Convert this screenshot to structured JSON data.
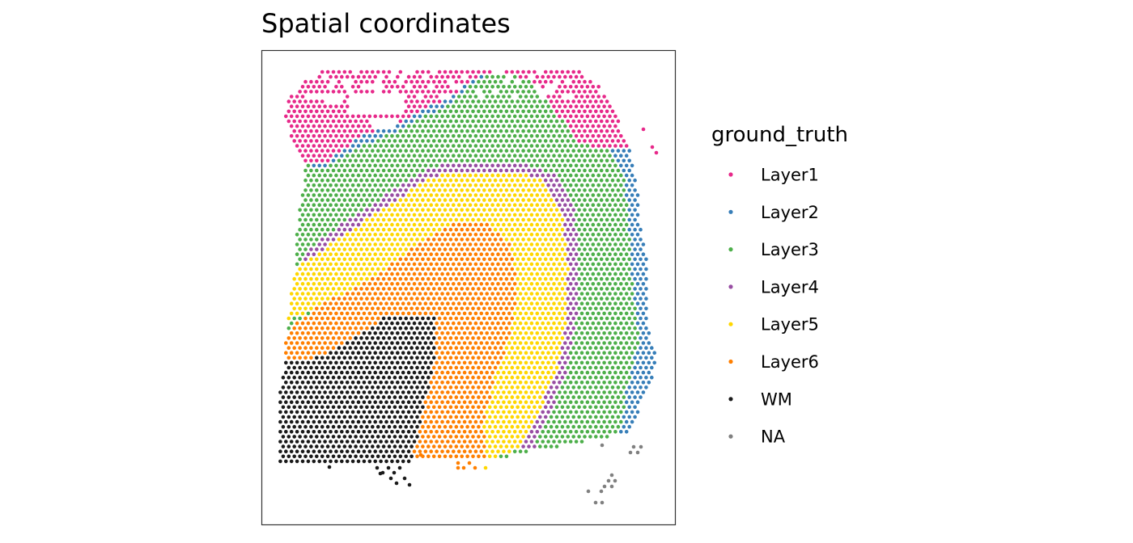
{
  "chart_data": {
    "type": "scatter",
    "title": "Spatial coordinates",
    "xlabel": "",
    "ylabel": "",
    "grid": false,
    "legend": {
      "title": "ground_truth",
      "placement": "right",
      "entries": [
        {
          "label": "Layer1",
          "color": "#E7298A"
        },
        {
          "label": "Layer2",
          "color": "#377EB8"
        },
        {
          "label": "Layer3",
          "color": "#4DAF4A"
        },
        {
          "label": "Layer4",
          "color": "#984EA3"
        },
        {
          "label": "Layer5",
          "color": "#FFD700"
        },
        {
          "label": "Layer6",
          "color": "#FF7F00"
        },
        {
          "label": "WM",
          "color": "#1A1A1A"
        },
        {
          "label": "NA",
          "color": "#808080"
        }
      ]
    },
    "series": [
      {
        "name": "Layer1",
        "region": "top band and upper-right edge"
      },
      {
        "name": "Layer2",
        "region": "thin band along outer edge"
      },
      {
        "name": "Layer3",
        "region": "broad band"
      },
      {
        "name": "Layer4",
        "region": "thin arc"
      },
      {
        "name": "Layer5",
        "region": "band"
      },
      {
        "name": "Layer6",
        "region": "band"
      },
      {
        "name": "WM",
        "region": "lower-left"
      },
      {
        "name": "NA",
        "region": "scattered lower-right"
      }
    ]
  }
}
